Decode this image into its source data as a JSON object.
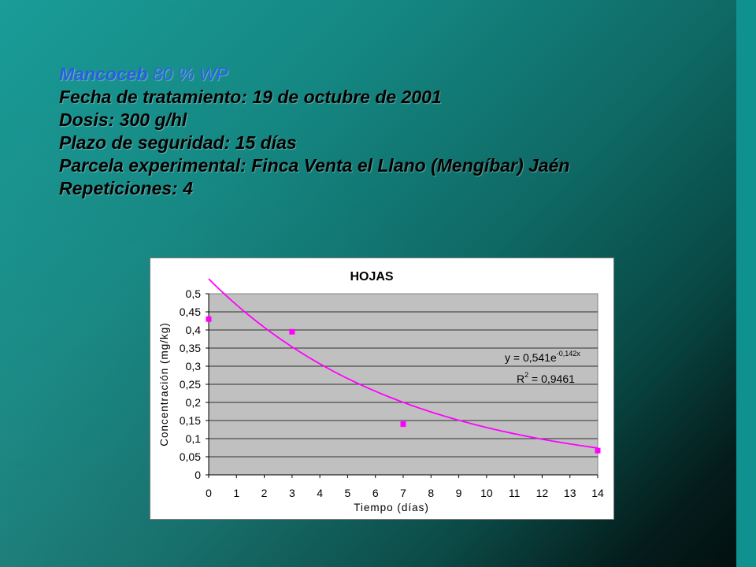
{
  "header": {
    "line1_bold": "Mancoceb",
    "line1_rest": " 80 % WP",
    "lines": [
      "Fecha de tratamiento:  19 de octubre de 2001",
      "Dosis: 300 g/hl",
      "Plazo de seguridad: 15 días",
      "Parcela experimental: Finca Venta el Llano (Mengíbar) Jaén",
      "Repeticiones: 4"
    ]
  },
  "chart_data": {
    "type": "scatter",
    "title": "HOJAS",
    "xlabel": "Tiempo (días)",
    "ylabel": "Concentración (mg/kg)",
    "xlim": [
      0,
      14
    ],
    "ylim": [
      0,
      0.5
    ],
    "x_ticks": [
      "0",
      "1",
      "2",
      "3",
      "4",
      "5",
      "6",
      "7",
      "8",
      "9",
      "10",
      "11",
      "12",
      "13",
      "14"
    ],
    "y_ticks": [
      "0",
      "0,05",
      "0,1",
      "0,15",
      "0,2",
      "0,25",
      "0,3",
      "0,35",
      "0,4",
      "0,45",
      "0,5"
    ],
    "points": [
      {
        "x": 0,
        "y": 0.43
      },
      {
        "x": 3,
        "y": 0.395
      },
      {
        "x": 7,
        "y": 0.14
      },
      {
        "x": 14,
        "y": 0.067
      }
    ],
    "trendline": {
      "type": "exponential",
      "a": 0.541,
      "b": -0.142
    },
    "equation_base": "y = 0,541e",
    "equation_exp": "-0,142x",
    "r2_label": "R",
    "r2_sup": "2",
    "r2_value": " = 0,9461",
    "grid": "horizontal",
    "plot_bg": "#c0c0c0",
    "point_color": "#ff00ff",
    "line_color": "#ff00ff"
  }
}
